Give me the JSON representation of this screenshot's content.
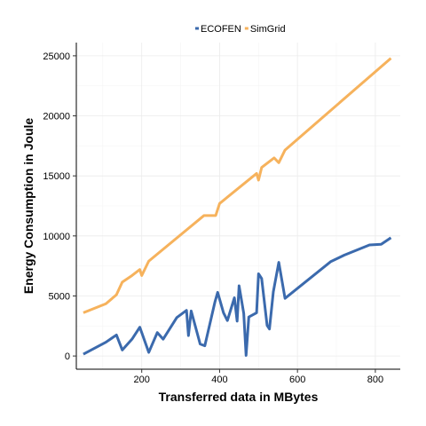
{
  "chart_data": {
    "type": "line",
    "xlabel": "Transferred data in MBytes",
    "ylabel": "Energy Consumption in Joule",
    "xlim": [
      32,
      864
    ],
    "ylim": [
      -1100,
      26100
    ],
    "x_ticks": [
      200,
      400,
      600,
      800
    ],
    "y_ticks": [
      0,
      5000,
      10000,
      15000,
      20000,
      25000
    ],
    "grid": true,
    "legend_position": "top",
    "series": [
      {
        "name": "ECOFEN",
        "color": "#3b6aad",
        "points": [
          [
            50,
            150
          ],
          [
            108,
            1150
          ],
          [
            135,
            1750
          ],
          [
            150,
            500
          ],
          [
            175,
            1400
          ],
          [
            195,
            2400
          ],
          [
            200,
            1950
          ],
          [
            218,
            300
          ],
          [
            240,
            1950
          ],
          [
            255,
            1400
          ],
          [
            290,
            3200
          ],
          [
            315,
            3800
          ],
          [
            320,
            1700
          ],
          [
            327,
            3750
          ],
          [
            350,
            1000
          ],
          [
            362,
            850
          ],
          [
            388,
            4500
          ],
          [
            395,
            5300
          ],
          [
            410,
            3600
          ],
          [
            420,
            2950
          ],
          [
            438,
            4850
          ],
          [
            445,
            2900
          ],
          [
            450,
            5850
          ],
          [
            462,
            3550
          ],
          [
            468,
            50
          ],
          [
            475,
            3250
          ],
          [
            495,
            3600
          ],
          [
            500,
            6850
          ],
          [
            508,
            6450
          ],
          [
            522,
            2550
          ],
          [
            528,
            2250
          ],
          [
            538,
            5350
          ],
          [
            552,
            7800
          ],
          [
            568,
            4800
          ],
          [
            685,
            7850
          ],
          [
            720,
            8400
          ],
          [
            785,
            9250
          ],
          [
            815,
            9300
          ],
          [
            840,
            9850
          ]
        ]
      },
      {
        "name": "SimGrid",
        "color": "#f6b25c",
        "points": [
          [
            50,
            3600
          ],
          [
            108,
            4350
          ],
          [
            135,
            5100
          ],
          [
            150,
            6150
          ],
          [
            175,
            6700
          ],
          [
            195,
            7200
          ],
          [
            200,
            6700
          ],
          [
            218,
            7900
          ],
          [
            360,
            11700
          ],
          [
            390,
            11700
          ],
          [
            400,
            12700
          ],
          [
            495,
            15200
          ],
          [
            500,
            14650
          ],
          [
            508,
            15700
          ],
          [
            540,
            16500
          ],
          [
            552,
            16100
          ],
          [
            568,
            17150
          ],
          [
            840,
            24800
          ]
        ]
      }
    ]
  }
}
